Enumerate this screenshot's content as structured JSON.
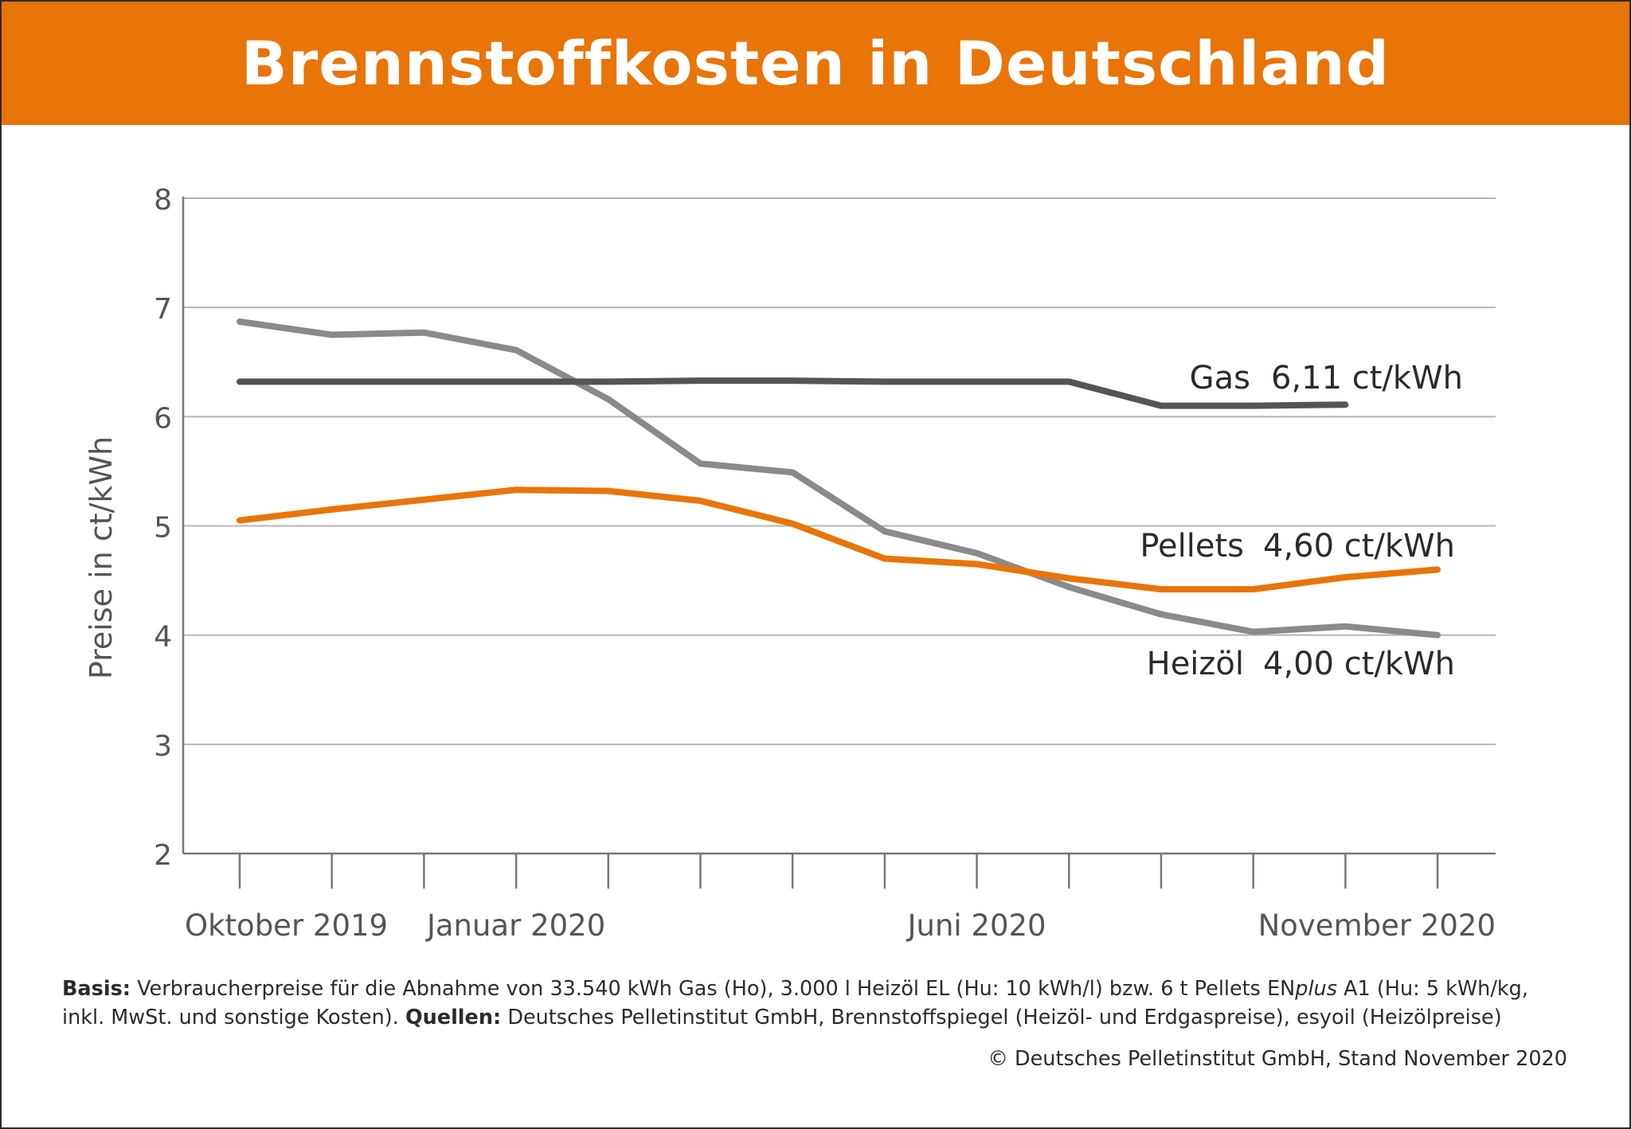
{
  "title": "Brennstoffkosten in Deutschland",
  "chart_data": {
    "type": "line",
    "ylabel": "Preise in ct/kWh",
    "ylim": [
      2,
      8
    ],
    "yticks": [
      2,
      3,
      4,
      5,
      6,
      7,
      8
    ],
    "grid": true,
    "x_points": 14,
    "xtick_labels": [
      {
        "index": 0,
        "label": "Oktober 2019"
      },
      {
        "index": 3,
        "label": "Januar 2020"
      },
      {
        "index": 8,
        "label": "Juni 2020"
      },
      {
        "index": 13,
        "label": "November 2020"
      }
    ],
    "series": [
      {
        "name": "Gas",
        "color": "#555555",
        "label": "6,11 ct/kWh",
        "values": [
          6.32,
          6.32,
          6.32,
          6.32,
          6.32,
          6.33,
          6.33,
          6.32,
          6.32,
          6.32,
          6.1,
          6.1,
          6.11,
          null
        ]
      },
      {
        "name": "Pellets",
        "color": "#e97408",
        "label": "4,60 ct/kWh",
        "values": [
          5.05,
          5.15,
          5.24,
          5.33,
          5.32,
          5.23,
          5.02,
          4.7,
          4.65,
          4.52,
          4.42,
          4.42,
          4.53,
          4.6
        ]
      },
      {
        "name": "Heizöl",
        "color": "#8a8a8a",
        "label": "4,00 ct/kWh",
        "values": [
          6.87,
          6.75,
          6.77,
          6.61,
          6.16,
          5.57,
          5.49,
          4.95,
          4.75,
          4.44,
          4.19,
          4.03,
          4.08,
          4.0
        ]
      }
    ]
  },
  "footer": {
    "basis_label": "Basis:",
    "basis_text_1": "Verbraucherpreise für die Abnahme von 33.540 kWh Gas (Ho), 3.000 l Heizöl EL (Hu: 10 kWh/l) bzw. 6 t Pellets EN",
    "basis_italic": "plus",
    "basis_text_2": " A1 (Hu: 5 kWh/kg,",
    "basis_line2": "inkl. MwSt. und sonstige Kosten).",
    "sources_label": "Quellen:",
    "sources_text": "Deutsches Pelletinstitut GmbH, Brennstoffspiegel (Heizöl- und Erdgaspreise), esyoil (Heizölpreise)",
    "copyright": "© Deutsches Pelletinstitut GmbH, Stand November 2020"
  },
  "colors": {
    "banner": "#e97408",
    "gas": "#555555",
    "pellets": "#e97408",
    "heizoel": "#8a8a8a",
    "grid": "#b5b5b5",
    "axis": "#777777",
    "text": "#2b2b2b"
  }
}
